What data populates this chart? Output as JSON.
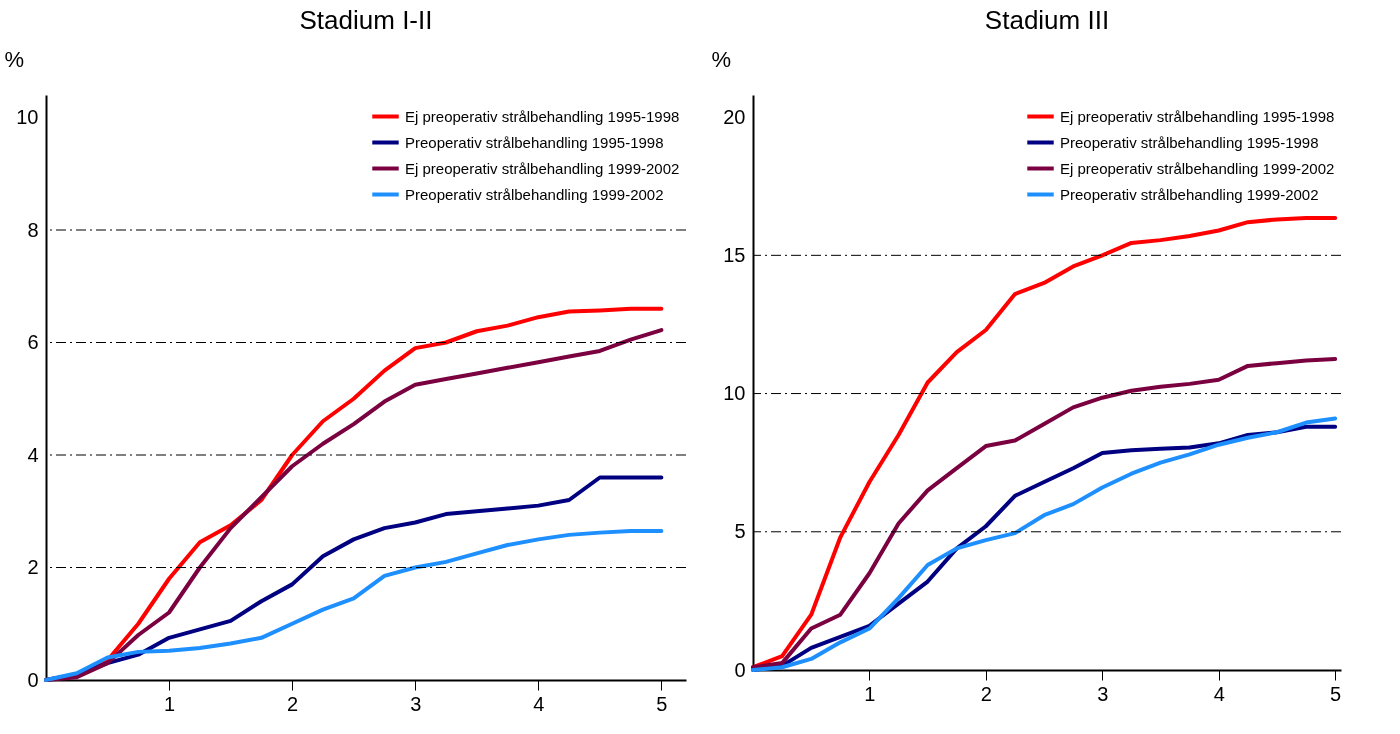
{
  "chart_data": [
    {
      "type": "line",
      "title": "Stadium I-II",
      "ylabel": "%",
      "x": [
        0,
        0.25,
        0.5,
        0.75,
        1,
        1.25,
        1.5,
        1.75,
        2,
        2.25,
        2.5,
        2.75,
        3,
        3.25,
        3.5,
        3.75,
        4,
        4.25,
        4.5,
        4.75,
        5
      ],
      "xlim": [
        0,
        5.2
      ],
      "xticks": [
        1,
        2,
        3,
        4,
        5
      ],
      "ylim": [
        0,
        10.4
      ],
      "yticks": [
        0,
        2,
        4,
        6,
        8,
        10
      ],
      "legend": "top right",
      "line_style": "solid",
      "ref_lines": [
        {
          "axis": "y",
          "value": 2,
          "line_style": "dashed"
        },
        {
          "axis": "y",
          "value": 4,
          "line_style": "dashed"
        },
        {
          "axis": "y",
          "value": 6,
          "line_style": "dashed"
        },
        {
          "axis": "y",
          "value": 8,
          "line_style": "dashed"
        }
      ],
      "series": [
        {
          "name": "Ej preoperativ strålbehandling 1995-1998",
          "color": "#ff0000",
          "values": [
            0,
            0.1,
            0.35,
            1.0,
            1.8,
            2.45,
            2.75,
            3.2,
            4.0,
            4.6,
            5.0,
            5.5,
            5.9,
            6.0,
            6.2,
            6.3,
            6.45,
            6.55,
            6.57,
            6.6,
            6.6
          ]
        },
        {
          "name": "Preoperativ strålbehandling 1995-1998",
          "color": "#000080",
          "values": [
            0,
            0.1,
            0.3,
            0.45,
            0.75,
            0.9,
            1.05,
            1.4,
            1.7,
            2.2,
            2.5,
            2.7,
            2.8,
            2.95,
            3.0,
            3.05,
            3.1,
            3.2,
            3.6,
            3.6,
            3.6
          ]
        },
        {
          "name": "Ej preoperativ strålbehandling 1999-2002",
          "color": "#7a0040",
          "values": [
            0,
            0.05,
            0.3,
            0.8,
            1.2,
            2.0,
            2.7,
            3.25,
            3.8,
            4.2,
            4.55,
            4.95,
            5.25,
            5.35,
            5.45,
            5.55,
            5.65,
            5.75,
            5.85,
            6.05,
            6.22
          ]
        },
        {
          "name": "Preoperativ strålbehandling 1999-2002",
          "color": "#1e8fff",
          "values": [
            0,
            0.12,
            0.4,
            0.5,
            0.52,
            0.57,
            0.65,
            0.75,
            1.0,
            1.25,
            1.45,
            1.85,
            2.0,
            2.1,
            2.25,
            2.4,
            2.5,
            2.58,
            2.62,
            2.65,
            2.65
          ]
        }
      ]
    },
    {
      "type": "line",
      "title": "Stadium III",
      "ylabel": "%",
      "x": [
        0,
        0.25,
        0.5,
        0.75,
        1,
        1.25,
        1.5,
        1.75,
        2,
        2.25,
        2.5,
        2.75,
        3,
        3.25,
        3.5,
        3.75,
        4,
        4.25,
        4.5,
        4.75,
        5
      ],
      "xlim": [
        0,
        5.05
      ],
      "xticks": [
        1,
        2,
        3,
        4,
        5
      ],
      "ylim": [
        0,
        20.8
      ],
      "yticks": [
        0,
        5,
        10,
        15,
        20
      ],
      "legend": "top right",
      "line_style": "solid",
      "ref_lines": [
        {
          "axis": "y",
          "value": 5,
          "line_style": "dashed"
        },
        {
          "axis": "y",
          "value": 10,
          "line_style": "dashed"
        },
        {
          "axis": "y",
          "value": 15,
          "line_style": "dashed"
        }
      ],
      "series": [
        {
          "name": "Ej preoperativ strålbehandling 1995-1998",
          "color": "#ff0000",
          "values": [
            0.1,
            0.5,
            2.0,
            4.8,
            6.8,
            8.5,
            10.4,
            11.5,
            12.3,
            13.6,
            14.0,
            14.6,
            15.0,
            15.45,
            15.55,
            15.7,
            15.9,
            16.2,
            16.3,
            16.35,
            16.35
          ]
        },
        {
          "name": "Preoperativ strålbehandling 1995-1998",
          "color": "#000080",
          "values": [
            0,
            0.15,
            0.8,
            1.2,
            1.6,
            2.4,
            3.2,
            4.4,
            5.2,
            6.3,
            6.8,
            7.3,
            7.85,
            7.95,
            8.0,
            8.05,
            8.2,
            8.5,
            8.6,
            8.8,
            8.8
          ]
        },
        {
          "name": "Ej preoperativ strålbehandling 1999-2002",
          "color": "#7a0040",
          "values": [
            0.1,
            0.25,
            1.5,
            2.0,
            3.5,
            5.3,
            6.5,
            7.3,
            8.1,
            8.3,
            8.9,
            9.5,
            9.85,
            10.1,
            10.25,
            10.35,
            10.5,
            11.0,
            11.1,
            11.2,
            11.25
          ]
        },
        {
          "name": "Preoperativ strålbehandling 1999-2002",
          "color": "#1e8fff",
          "values": [
            0,
            0.1,
            0.4,
            1.0,
            1.5,
            2.6,
            3.8,
            4.4,
            4.7,
            4.95,
            5.6,
            6.0,
            6.6,
            7.1,
            7.5,
            7.8,
            8.15,
            8.4,
            8.6,
            8.95,
            9.1
          ]
        }
      ]
    }
  ]
}
